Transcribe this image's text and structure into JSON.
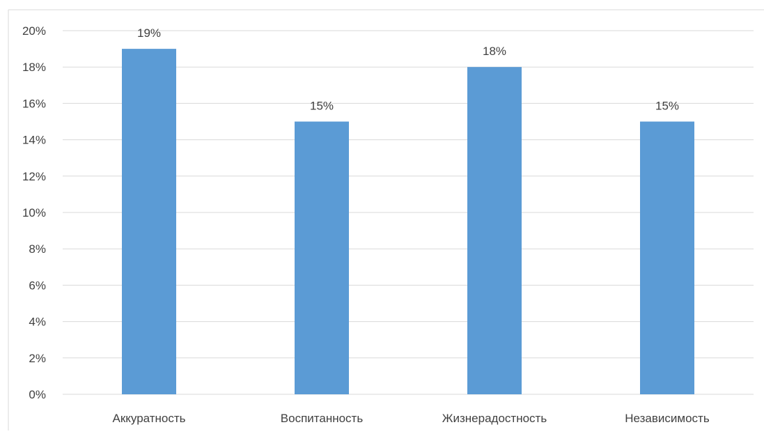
{
  "chart_data": {
    "type": "bar",
    "categories": [
      "Аккуратность",
      "Воспитанность",
      "Жизнерадостность",
      "Независимость"
    ],
    "values": [
      19,
      15,
      18,
      15
    ],
    "data_labels": [
      "19%",
      "15%",
      "18%",
      "15%"
    ],
    "ylim": [
      0,
      20
    ],
    "yticks": [
      0,
      2,
      4,
      6,
      8,
      10,
      12,
      14,
      16,
      18,
      20
    ],
    "ytick_labels": [
      "0%",
      "2%",
      "4%",
      "6%",
      "8%",
      "10%",
      "12%",
      "14%",
      "16%",
      "18%",
      "20%"
    ],
    "grid": true,
    "legend": "none",
    "colors": {
      "bar": "#5B9BD5",
      "grid": "#D9D9D9",
      "text": "#404040",
      "frame": "#D9D9D9"
    }
  }
}
